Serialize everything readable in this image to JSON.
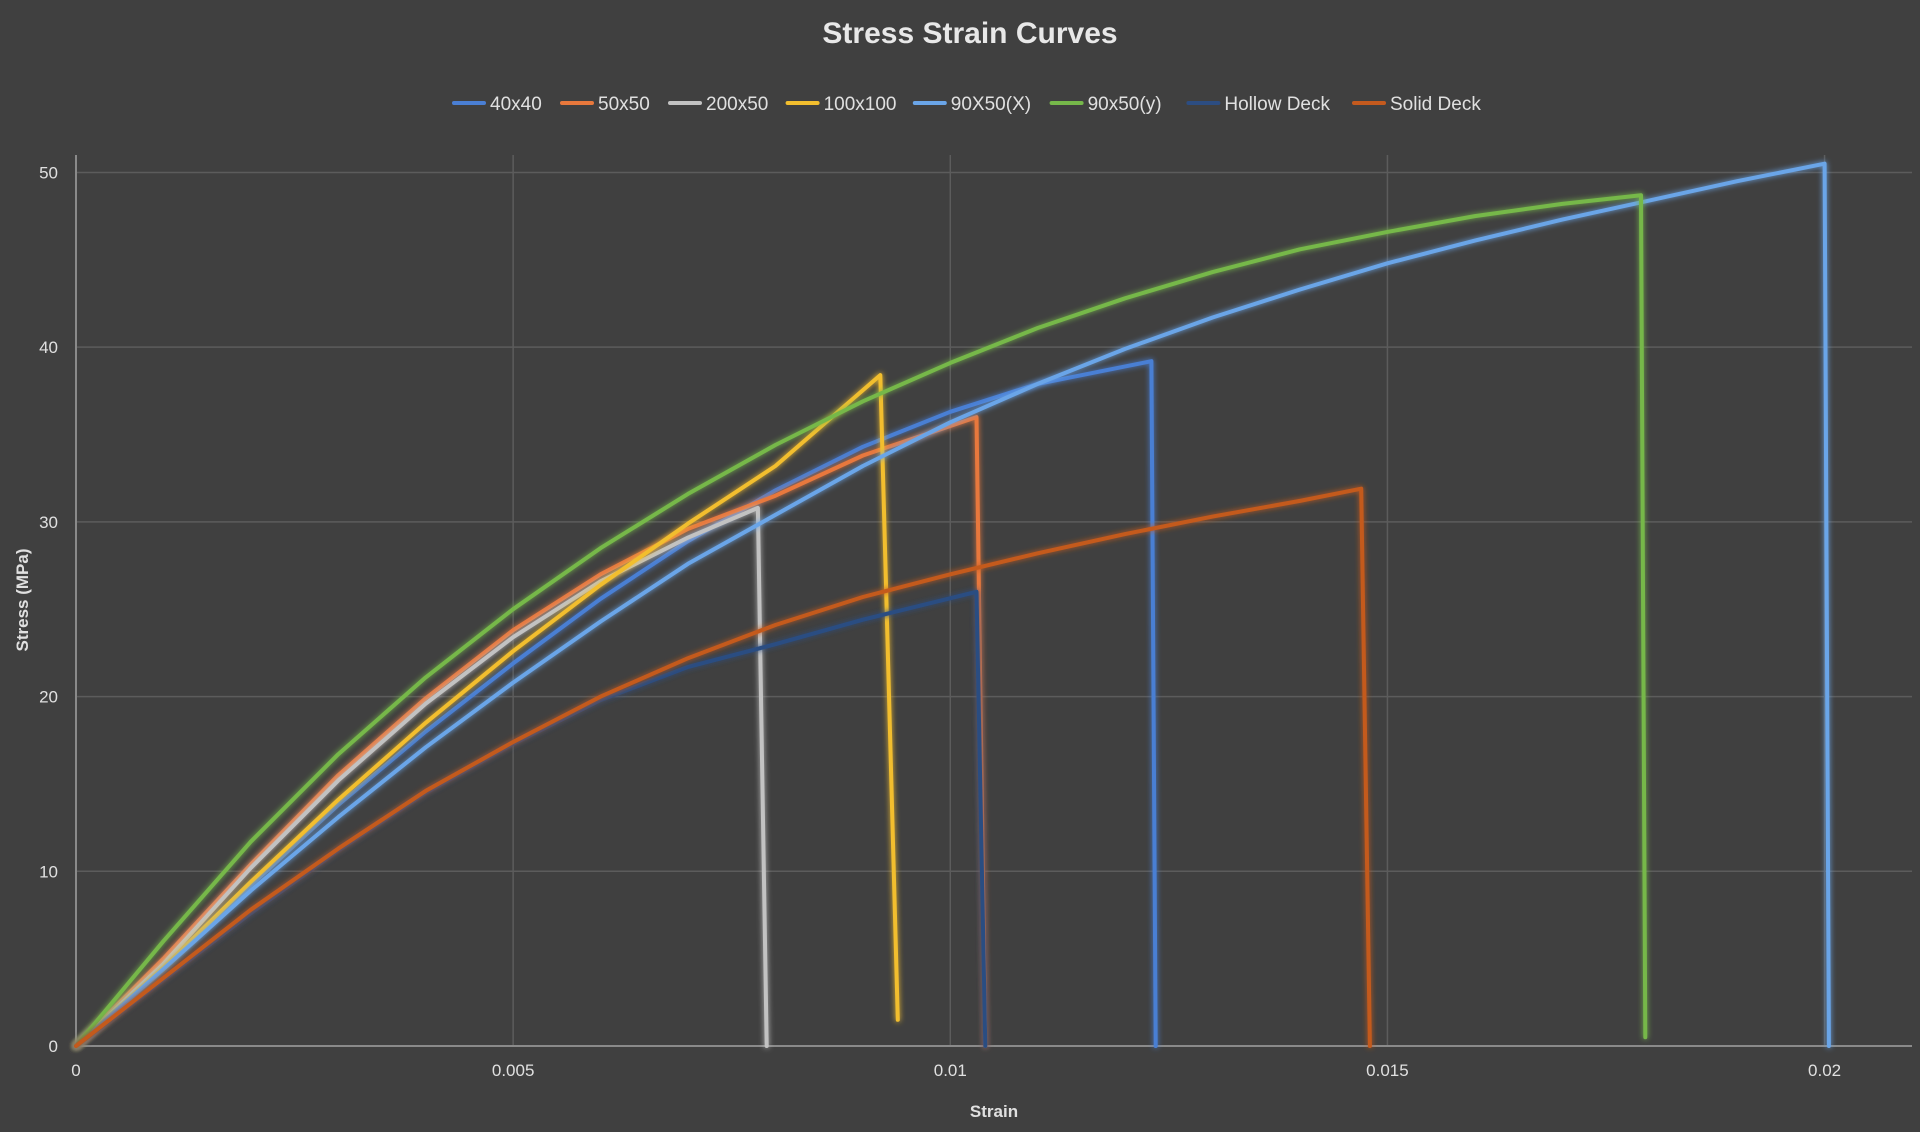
{
  "chart_data": {
    "type": "line",
    "title": "Stress Strain Curves",
    "xlabel": "Strain",
    "ylabel": "Stress (MPa)",
    "xlim": [
      0,
      0.021
    ],
    "ylim": [
      0,
      51
    ],
    "x_ticks": [
      0,
      0.005,
      0.01,
      0.015,
      0.02
    ],
    "x_tick_labels": [
      "0",
      "0.005",
      "0.01",
      "0.015",
      "0.02"
    ],
    "y_ticks": [
      0,
      10,
      20,
      30,
      40,
      50
    ],
    "y_tick_labels": [
      "0",
      "10",
      "20",
      "30",
      "40",
      "50"
    ],
    "grid": true,
    "legend_position": "top",
    "series": [
      {
        "name": "40x40",
        "color": "#4a7fd4",
        "x": [
          0,
          0.001,
          0.002,
          0.003,
          0.004,
          0.005,
          0.006,
          0.007,
          0.008,
          0.009,
          0.01,
          0.011,
          0.0123,
          0.01235
        ],
        "y": [
          0,
          4.5,
          9.2,
          13.8,
          18,
          21.9,
          25.6,
          28.9,
          31.8,
          34.3,
          36.3,
          37.9,
          39.2,
          0
        ]
      },
      {
        "name": "50x50",
        "color": "#e8783c",
        "x": [
          0,
          0.001,
          0.002,
          0.003,
          0.004,
          0.005,
          0.006,
          0.007,
          0.008,
          0.009,
          0.0103,
          0.0104
        ],
        "y": [
          0,
          5,
          10.4,
          15.5,
          19.9,
          23.8,
          27,
          29.6,
          31.5,
          33.8,
          36,
          0
        ]
      },
      {
        "name": "200x50",
        "color": "#c2c2c2",
        "x": [
          0,
          0.001,
          0.002,
          0.003,
          0.004,
          0.005,
          0.006,
          0.007,
          0.0078,
          0.0079
        ],
        "y": [
          0,
          4.7,
          10.2,
          15.2,
          19.6,
          23.4,
          26.6,
          29.1,
          30.8,
          0
        ]
      },
      {
        "name": "100x100",
        "color": "#f2be2e",
        "x": [
          0,
          0.001,
          0.002,
          0.003,
          0.004,
          0.005,
          0.006,
          0.007,
          0.008,
          0.0092,
          0.0094
        ],
        "y": [
          0,
          4.5,
          9.4,
          14.1,
          18.5,
          22.6,
          26.4,
          29.9,
          33.2,
          38.4,
          1.5
        ]
      },
      {
        "name": "90X50(X)",
        "color": "#6aa5e8",
        "x": [
          0,
          0.001,
          0.002,
          0.003,
          0.004,
          0.005,
          0.006,
          0.007,
          0.008,
          0.009,
          0.01,
          0.011,
          0.012,
          0.013,
          0.014,
          0.015,
          0.016,
          0.017,
          0.018,
          0.019,
          0.02,
          0.02005
        ],
        "y": [
          0,
          4.4,
          8.9,
          13.1,
          17.1,
          20.8,
          24.3,
          27.6,
          30.4,
          33.2,
          35.7,
          37.9,
          39.9,
          41.7,
          43.3,
          44.8,
          46.1,
          47.3,
          48.4,
          49.5,
          50.5,
          0
        ]
      },
      {
        "name": "90x50(y)",
        "color": "#76b84a",
        "x": [
          0,
          0.001,
          0.002,
          0.003,
          0.004,
          0.005,
          0.006,
          0.007,
          0.008,
          0.009,
          0.01,
          0.011,
          0.012,
          0.013,
          0.014,
          0.015,
          0.016,
          0.017,
          0.0179,
          0.01795
        ],
        "y": [
          0,
          6,
          11.7,
          16.7,
          21.1,
          25,
          28.5,
          31.6,
          34.4,
          36.9,
          39.1,
          41.1,
          42.8,
          44.3,
          45.6,
          46.6,
          47.5,
          48.2,
          48.7,
          0.5
        ]
      },
      {
        "name": "Hollow Deck",
        "color": "#2c4d82",
        "x": [
          0,
          0.001,
          0.002,
          0.003,
          0.004,
          0.005,
          0.006,
          0.007,
          0.008,
          0.009,
          0.0103,
          0.0104
        ],
        "y": [
          0,
          3.8,
          7.6,
          11.2,
          14.5,
          17.3,
          19.8,
          21.7,
          23,
          24.4,
          26,
          0
        ]
      },
      {
        "name": "Solid Deck",
        "color": "#c45a1e",
        "x": [
          0,
          0.001,
          0.002,
          0.003,
          0.004,
          0.005,
          0.006,
          0.007,
          0.008,
          0.009,
          0.01,
          0.011,
          0.012,
          0.013,
          0.014,
          0.0147,
          0.0148
        ],
        "y": [
          0,
          3.9,
          7.8,
          11.3,
          14.6,
          17.4,
          20,
          22.2,
          24.1,
          25.7,
          27,
          28.2,
          29.3,
          30.3,
          31.2,
          31.9,
          0
        ]
      }
    ]
  }
}
